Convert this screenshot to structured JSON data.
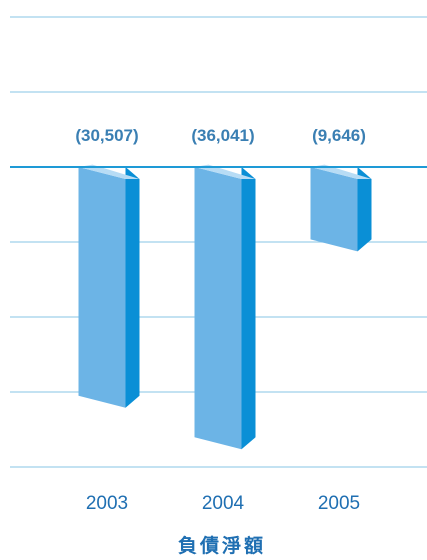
{
  "chart_data": {
    "type": "bar",
    "categories": [
      "2003",
      "2004",
      "2005"
    ],
    "values": [
      -30507,
      -36041,
      -9646
    ],
    "data_labels": [
      "(30,507)",
      "(36,041)",
      "(9,646)"
    ],
    "title": "",
    "xlabel": "負債淨額",
    "ylabel": "",
    "ylim": [
      -40000,
      20000
    ],
    "grid": true,
    "legend": "none",
    "colors": {
      "bar_front": "#6cb4e6",
      "bar_side": "#0a8fd6",
      "bar_top": "#b7dcf5",
      "gridline": "#9fd0ea",
      "baseline": "#1e9ad6",
      "text": "#1f6fb2",
      "data_label": "#3a7fb3"
    }
  }
}
